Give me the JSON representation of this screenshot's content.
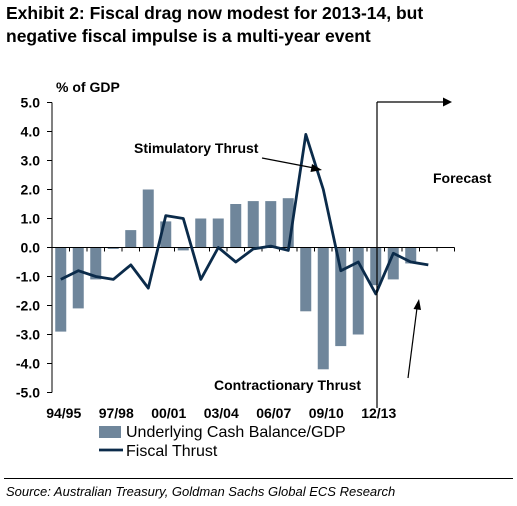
{
  "title_lines": [
    "Exhibit 2: Fiscal drag now modest for 2013-14, but",
    "negative fiscal impulse is a multi-year event"
  ],
  "source": "Source: Australian Treasury, Goldman Sachs Global ECS Research",
  "colors": {
    "bar": "#6f869b",
    "line": "#0b2b4a",
    "text": "#000000"
  },
  "chart_data": {
    "type": "bar",
    "ylabel": "% of GDP",
    "ylim": [
      -5.0,
      5.0
    ],
    "ytick_step": 1.0,
    "yticks": [
      "5.0",
      "4.0",
      "3.0",
      "2.0",
      "1.0",
      "0.0",
      "-1.0",
      "-2.0",
      "-3.0",
      "-4.0",
      "-5.0"
    ],
    "categories": [
      "94/95",
      "95/96",
      "96/97",
      "97/98",
      "98/99",
      "99/00",
      "00/01",
      "01/02",
      "02/03",
      "03/04",
      "04/05",
      "05/06",
      "06/07",
      "07/08",
      "08/09",
      "09/10",
      "10/11",
      "11/12",
      "12/13",
      "13/14",
      "14/15",
      "15/16",
      "16/17"
    ],
    "x_tick_labels": [
      {
        "index": 0,
        "label": "94/95"
      },
      {
        "index": 3,
        "label": "97/98"
      },
      {
        "index": 6,
        "label": "00/01"
      },
      {
        "index": 9,
        "label": "03/04"
      },
      {
        "index": 12,
        "label": "06/07"
      },
      {
        "index": 15,
        "label": "09/10"
      },
      {
        "index": 18,
        "label": "12/13"
      }
    ],
    "series": [
      {
        "name": "Underlying Cash Balance/GDP",
        "kind": "bar",
        "values": [
          -2.9,
          -2.1,
          -1.1,
          -0.05,
          0.6,
          2.0,
          0.9,
          -0.1,
          1.0,
          1.0,
          1.5,
          1.6,
          1.6,
          1.7,
          -2.2,
          -4.2,
          -3.4,
          -3.0,
          -1.3,
          -1.1,
          -0.55,
          null,
          null
        ]
      },
      {
        "name": "Fiscal Thrust",
        "kind": "line",
        "values": [
          -1.1,
          -0.8,
          -1.0,
          -1.1,
          -0.6,
          -1.4,
          1.1,
          1.0,
          -1.1,
          0.0,
          -0.5,
          -0.05,
          0.05,
          -0.1,
          3.9,
          2.0,
          -0.8,
          -0.5,
          -1.6,
          -0.2,
          -0.5,
          -0.6,
          null
        ]
      }
    ],
    "forecast_start_index": 18,
    "annotations": {
      "stimulatory": "Stimulatory Thrust",
      "contractionary": "Contractionary Thrust",
      "forecast": "Forecast"
    },
    "legend_position": "bottom-left"
  }
}
